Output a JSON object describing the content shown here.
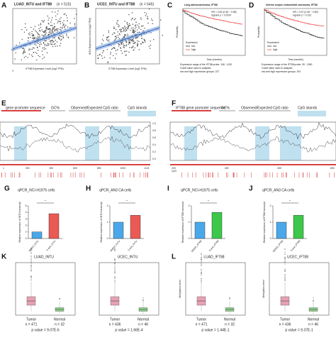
{
  "A": {
    "label": "A",
    "title": "LUAD_INTU and IFT88",
    "n": "(n = 515)",
    "xlabel": "IFT88 Expression Level (log2 TPM)"
  },
  "B": {
    "label": "B",
    "title": "UCEC_INTU and IFT88",
    "n": "(n = 545)",
    "ylabel": "INTU Expression Level (log2 TPM)",
    "xlabel": "IFT88 Expression Level (log2 TPM)"
  },
  "C": {
    "label": "C",
    "title": "Lung adenocarcinoma, IFT88",
    "stats": [
      "HR = 0.62 (0.46 − 0.85)",
      "logrank p = 0.0014"
    ],
    "legend": [
      "Expression",
      "low",
      "high"
    ],
    "ylabel": "Probability",
    "xlabel": "Time (months)",
    "notes": [
      "Expression range of the IFT88 probe: 108 - 1130",
      "Cutoff value used in analysis:",
      "low and high expression groups: 227"
    ]
  },
  "D": {
    "label": "D",
    "title": "Uterine corpus endometrial carcinoma, IFT88",
    "stats": [
      "HR = 0.57 (0.36 − 0.89)",
      "logrank p = 0.012"
    ],
    "legend": [
      "Expression",
      "low",
      "high"
    ],
    "ylabel": "Probability",
    "xlabel": "Time (months)",
    "notes": [
      "Expression range of the IFT88 probe: 39 - 1950",
      "Cutoff value used in analysis:",
      "low and high expression groups: 291"
    ]
  },
  "E": {
    "label": "E",
    "legend": [
      "gene promoter sequence",
      "GC%",
      "Observed/Expected CpG ratio",
      "CpG islands"
    ],
    "yticks": [
      "1.0",
      "0.8",
      "0.6",
      "0.4",
      "0.2",
      "0.0"
    ],
    "xticks": [
      "1",
      "200",
      "400",
      "600",
      "800",
      "1000",
      "1121"
    ]
  },
  "F": {
    "label": "F",
    "legend": [
      "IFT88 gene promoter sequence",
      "GC%",
      "Observed/Expected CpG ratio",
      "CpG islands"
    ],
    "track": "CpG",
    "xticks": [
      "200",
      "400",
      "600",
      "800"
    ]
  },
  "charts": [
    {
      "label": "G",
      "type": "bar",
      "title": "qPCR_NCI-H1975 cells",
      "ylabel": "Relative expression of INTU transcript",
      "categories": [
        "DMSO_INTU",
        "5-aza_INTU"
      ],
      "values": [
        1,
        3.8
      ],
      "colors": [
        "#4aa8ea",
        "#ea5a55"
      ],
      "ylim": [
        0,
        5
      ],
      "yticks": [
        0,
        1,
        2,
        3,
        4,
        5
      ],
      "sig": "*"
    },
    {
      "label": "H",
      "type": "bar",
      "title": "qPCR_AN3 CA cells",
      "ylabel": "Relative expression of INTU transcript",
      "categories": [
        "DMSO_INTU",
        "5-aza_INTU"
      ],
      "values": [
        1,
        1.42
      ],
      "colors": [
        "#4aa8ea",
        "#ea5a55"
      ],
      "ylim": [
        0,
        2
      ],
      "yticks": [
        0,
        1,
        2
      ],
      "sig": "*"
    },
    {
      "label": "I",
      "type": "bar",
      "title": "qPCR_NCI-H1975 cells",
      "ylabel": "Relative expression of IFT88 transcript",
      "categories": [
        "DMSO_IFT88",
        "5-aza_IFT88"
      ],
      "values": [
        1,
        1.6
      ],
      "colors": [
        "#4aa8ea",
        "#3cc84a"
      ],
      "ylim": [
        0,
        2
      ],
      "yticks": [
        0,
        1,
        2
      ],
      "sig": "*"
    },
    {
      "label": "J",
      "type": "bar",
      "title": "qPCR_AN3 CA cells",
      "ylabel": "Relative expression of IFT88 transcript",
      "categories": [
        "DMSO_IFT88",
        "5-aza_IFT88"
      ],
      "values": [
        1,
        1.42
      ],
      "colors": [
        "#4aa8ea",
        "#3cc84a"
      ],
      "ylim": [
        0,
        2
      ],
      "yticks": [
        0,
        1,
        2
      ],
      "sig": "*"
    }
  ],
  "K": {
    "label": "K",
    "plots": [
      {
        "title": "LUAD_INTU",
        "groups": [
          "Tumor",
          "Normal"
        ],
        "n": [
          "n = 471",
          "n = 32"
        ],
        "p": "p value = 9.07E-6"
      },
      {
        "title": "UCEC_INTU",
        "groups": [
          "Tumor",
          "Normal"
        ],
        "n": [
          "n = 436",
          "n = 46"
        ],
        "p": "p value = 1.66E-4"
      }
    ]
  },
  "L": {
    "label": "L",
    "ylabel": "Methylation level",
    "plots": [
      {
        "title": "LUAD_IFT88",
        "groups": [
          "Tumor",
          "Normal"
        ],
        "n": [
          "n = 471",
          "n = 32"
        ],
        "p": "p value = 1.44E-1"
      },
      {
        "title": "UCEC_IFT88",
        "groups": [
          "Tumor",
          "Normal"
        ],
        "n": [
          "n = 436",
          "n = 46"
        ],
        "p": "p value = 9.37E-1"
      }
    ]
  }
}
